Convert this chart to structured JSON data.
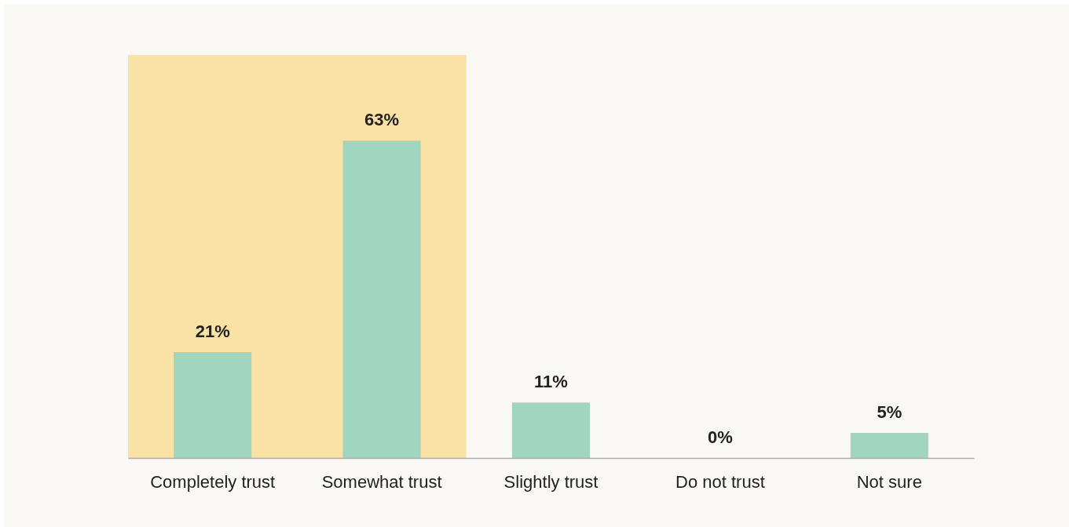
{
  "chart_data": {
    "type": "bar",
    "categories": [
      "Completely trust",
      "Somewhat trust",
      "Slightly trust",
      "Do not trust",
      "Not sure"
    ],
    "values": [
      21,
      63,
      11,
      0,
      5
    ],
    "color": "#a0d5c0",
    "ylim": [
      0,
      80
    ],
    "tick_labels": "x",
    "value_labels": [
      "21%",
      "63%",
      "11%",
      "0%",
      "5%"
    ],
    "bands": [
      {
        "axis": "x",
        "from": "Completely trust",
        "to": "Somewhat trust",
        "color": "#fae1a6"
      }
    ]
  }
}
